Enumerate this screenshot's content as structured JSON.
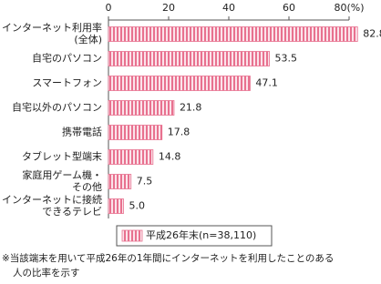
{
  "chart_data": {
    "type": "bar",
    "orientation": "horizontal",
    "categories": [
      "インターネット利用率\n(全体)",
      "自宅のパソコン",
      "スマートフォン",
      "自宅以外のパソコン",
      "携帯電話",
      "タブレット型端末",
      "家庭用ゲーム機・\nその他",
      "インターネットに接続\nできるテレビ"
    ],
    "series": [
      {
        "name": "平成26年末(n=38,110)",
        "color": "#e8718f",
        "values": [
          82.8,
          53.5,
          47.1,
          21.8,
          17.8,
          14.8,
          7.5,
          5.0
        ],
        "value_labels": [
          "82.8",
          "53.5",
          "47.1",
          "21.8",
          "17.8",
          "14.8",
          "7.5",
          "5.0"
        ]
      }
    ],
    "xlim": [
      0,
      80
    ],
    "xticks": [
      0,
      20,
      40,
      60,
      {
        "value": 80,
        "label": "80(%)"
      }
    ],
    "footnote": [
      "※当該端末を用いて平成26年の1年間にインターネットを利用したことのある",
      "人の比率を示す"
    ]
  }
}
